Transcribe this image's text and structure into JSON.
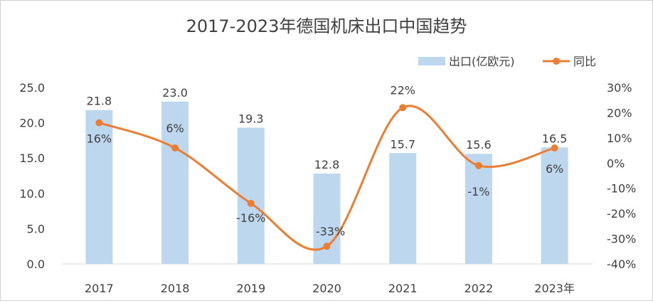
{
  "chart_data": {
    "type": "bar+line",
    "title": "2017-2023年德国机床出口中国趋势",
    "categories": [
      "2017",
      "2018",
      "2019",
      "2020",
      "2021",
      "2022",
      "2023年"
    ],
    "series": [
      {
        "name": "出口(亿欧元)",
        "type": "bar",
        "axis": "left",
        "values": [
          21.8,
          23.0,
          19.3,
          12.8,
          15.7,
          15.6,
          16.5
        ],
        "labels": [
          "21.8",
          "23.0",
          "19.3",
          "12.8",
          "15.7",
          "15.6",
          "16.5"
        ],
        "color": "#bdd7ee"
      },
      {
        "name": "同比",
        "type": "line",
        "smooth": true,
        "axis": "right",
        "values": [
          16,
          6,
          -16,
          -33,
          22,
          -1,
          6
        ],
        "labels": [
          "16%",
          "6%",
          "-16%",
          "-33%",
          "22%",
          "-1%",
          "6%"
        ],
        "color": "#ed7d31"
      }
    ],
    "left_axis": {
      "ylim": [
        0,
        25
      ],
      "ticks": [
        "0.0",
        "5.0",
        "10.0",
        "15.0",
        "20.0",
        "25.0"
      ]
    },
    "right_axis": {
      "ylim": [
        -40,
        30
      ],
      "ticks": [
        "-40%",
        "-30%",
        "-20%",
        "-10%",
        "0%",
        "10%",
        "20%",
        "30%"
      ]
    },
    "legend": "top-right",
    "grid": false
  }
}
